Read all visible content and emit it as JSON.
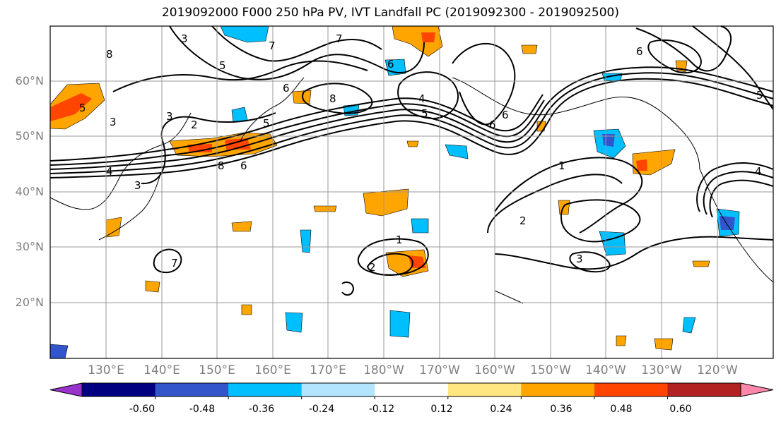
{
  "title": "2019092000 F000 250 hPa PV, IVT Landfall PC (2019092300 - 2019092500)",
  "latitude_labels": [
    "60°N",
    "50°N",
    "40°N",
    "30°N",
    "20°N"
  ],
  "longitude_labels": [
    "130°E",
    "140°E",
    "150°E",
    "160°E",
    "170°E",
    "180°W",
    "170°W",
    "160°W",
    "150°W",
    "140°W",
    "130°W",
    "120°W"
  ],
  "colorbar": {
    "tick_labels": [
      "-0.60",
      "-0.48",
      "-0.36",
      "-0.24",
      "-0.12",
      "0.12",
      "0.24",
      "0.36",
      "0.48",
      "0.60"
    ],
    "colors": [
      "#9933cc",
      "#000080",
      "#3355cc",
      "#00bfff",
      "#b3e5ff",
      "#ffffff",
      "#ffe680",
      "#ffa500",
      "#ff4500",
      "#b22222",
      "#ff88aa"
    ],
    "extend": "both"
  },
  "contour_labels": [
    "7",
    "8",
    "7",
    "6",
    "3",
    "5",
    "6",
    "3",
    "3",
    "4",
    "3",
    "8",
    "6",
    "5",
    "2",
    "4",
    "5",
    "5",
    "6",
    "8",
    "5",
    "6",
    "1",
    "2",
    "3",
    "1",
    "2",
    "7",
    "6",
    "4"
  ],
  "colors": {
    "negative": "#00bfff",
    "positive": "#ffa500",
    "contour": "#000000",
    "grid": "#999999"
  }
}
